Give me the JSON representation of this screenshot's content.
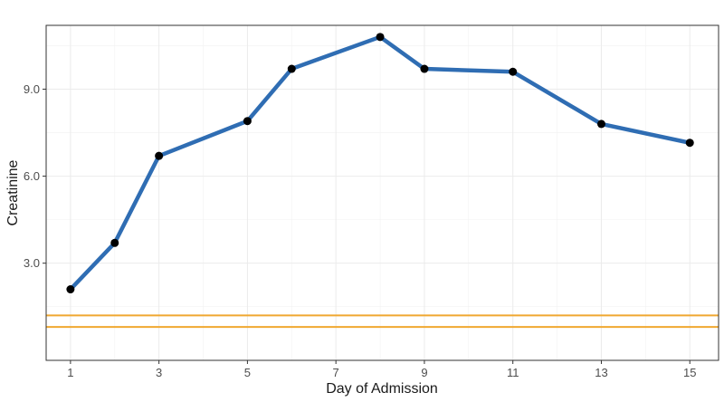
{
  "chart_data": {
    "type": "line",
    "title": "",
    "xlabel": "Day of Admission",
    "ylabel": "Creatinine",
    "xlim": [
      0.45,
      15.65
    ],
    "ylim": [
      -0.35,
      11.2
    ],
    "x_ticks": [
      1,
      3,
      5,
      7,
      9,
      11,
      13,
      15
    ],
    "x_tick_labels": [
      "1",
      "3",
      "5",
      "7",
      "9",
      "11",
      "13",
      "15"
    ],
    "y_ticks": [
      3,
      6,
      9
    ],
    "y_tick_labels": [
      "3.0",
      "6.0",
      "9.0"
    ],
    "grid": true,
    "legend": "none",
    "series": [
      {
        "color": "#2f6db3",
        "x": [
          1,
          2,
          3,
          5,
          6,
          8,
          9,
          11,
          13,
          15
        ],
        "y": [
          2.1,
          3.7,
          6.7,
          7.9,
          9.7,
          10.8,
          9.7,
          9.6,
          7.8,
          7.15
        ]
      }
    ],
    "reference_lines": [
      {
        "orientation": "horizontal",
        "y": 1.2,
        "color": "#f0a830"
      },
      {
        "orientation": "horizontal",
        "y": 0.8,
        "color": "#f0a830"
      }
    ],
    "point_color": "#000000"
  }
}
